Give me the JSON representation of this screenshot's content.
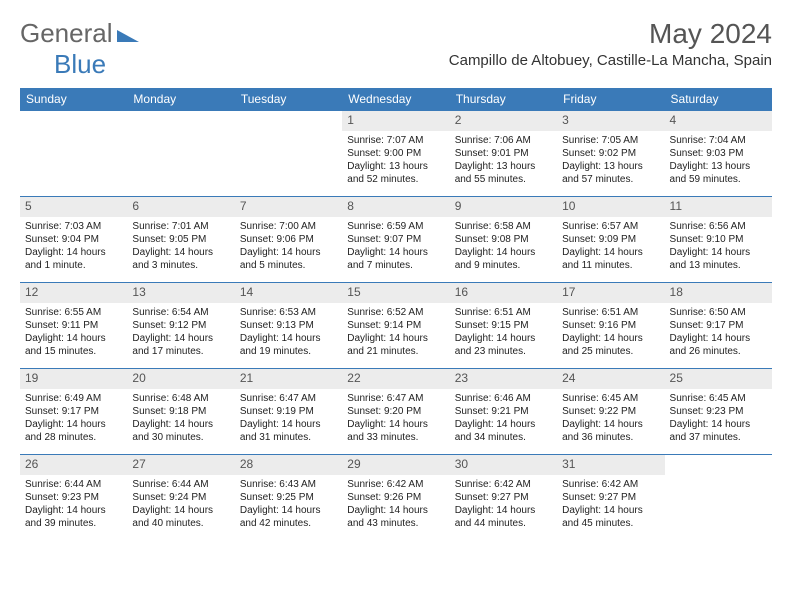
{
  "logo": {
    "part1": "General",
    "part2": "Blue"
  },
  "title": "May 2024",
  "location": "Campillo de Altobuey, Castille-La Mancha, Spain",
  "colors": {
    "header_bg": "#3a7ab8",
    "header_fg": "#ffffff",
    "daynum_bg": "#ececec",
    "border": "#3a7ab8"
  },
  "weekdays": [
    "Sunday",
    "Monday",
    "Tuesday",
    "Wednesday",
    "Thursday",
    "Friday",
    "Saturday"
  ],
  "weeks": [
    [
      {
        "n": "",
        "sr": "",
        "ss": "",
        "dl": ""
      },
      {
        "n": "",
        "sr": "",
        "ss": "",
        "dl": ""
      },
      {
        "n": "",
        "sr": "",
        "ss": "",
        "dl": ""
      },
      {
        "n": "1",
        "sr": "Sunrise: 7:07 AM",
        "ss": "Sunset: 9:00 PM",
        "dl": "Daylight: 13 hours and 52 minutes."
      },
      {
        "n": "2",
        "sr": "Sunrise: 7:06 AM",
        "ss": "Sunset: 9:01 PM",
        "dl": "Daylight: 13 hours and 55 minutes."
      },
      {
        "n": "3",
        "sr": "Sunrise: 7:05 AM",
        "ss": "Sunset: 9:02 PM",
        "dl": "Daylight: 13 hours and 57 minutes."
      },
      {
        "n": "4",
        "sr": "Sunrise: 7:04 AM",
        "ss": "Sunset: 9:03 PM",
        "dl": "Daylight: 13 hours and 59 minutes."
      }
    ],
    [
      {
        "n": "5",
        "sr": "Sunrise: 7:03 AM",
        "ss": "Sunset: 9:04 PM",
        "dl": "Daylight: 14 hours and 1 minute."
      },
      {
        "n": "6",
        "sr": "Sunrise: 7:01 AM",
        "ss": "Sunset: 9:05 PM",
        "dl": "Daylight: 14 hours and 3 minutes."
      },
      {
        "n": "7",
        "sr": "Sunrise: 7:00 AM",
        "ss": "Sunset: 9:06 PM",
        "dl": "Daylight: 14 hours and 5 minutes."
      },
      {
        "n": "8",
        "sr": "Sunrise: 6:59 AM",
        "ss": "Sunset: 9:07 PM",
        "dl": "Daylight: 14 hours and 7 minutes."
      },
      {
        "n": "9",
        "sr": "Sunrise: 6:58 AM",
        "ss": "Sunset: 9:08 PM",
        "dl": "Daylight: 14 hours and 9 minutes."
      },
      {
        "n": "10",
        "sr": "Sunrise: 6:57 AM",
        "ss": "Sunset: 9:09 PM",
        "dl": "Daylight: 14 hours and 11 minutes."
      },
      {
        "n": "11",
        "sr": "Sunrise: 6:56 AM",
        "ss": "Sunset: 9:10 PM",
        "dl": "Daylight: 14 hours and 13 minutes."
      }
    ],
    [
      {
        "n": "12",
        "sr": "Sunrise: 6:55 AM",
        "ss": "Sunset: 9:11 PM",
        "dl": "Daylight: 14 hours and 15 minutes."
      },
      {
        "n": "13",
        "sr": "Sunrise: 6:54 AM",
        "ss": "Sunset: 9:12 PM",
        "dl": "Daylight: 14 hours and 17 minutes."
      },
      {
        "n": "14",
        "sr": "Sunrise: 6:53 AM",
        "ss": "Sunset: 9:13 PM",
        "dl": "Daylight: 14 hours and 19 minutes."
      },
      {
        "n": "15",
        "sr": "Sunrise: 6:52 AM",
        "ss": "Sunset: 9:14 PM",
        "dl": "Daylight: 14 hours and 21 minutes."
      },
      {
        "n": "16",
        "sr": "Sunrise: 6:51 AM",
        "ss": "Sunset: 9:15 PM",
        "dl": "Daylight: 14 hours and 23 minutes."
      },
      {
        "n": "17",
        "sr": "Sunrise: 6:51 AM",
        "ss": "Sunset: 9:16 PM",
        "dl": "Daylight: 14 hours and 25 minutes."
      },
      {
        "n": "18",
        "sr": "Sunrise: 6:50 AM",
        "ss": "Sunset: 9:17 PM",
        "dl": "Daylight: 14 hours and 26 minutes."
      }
    ],
    [
      {
        "n": "19",
        "sr": "Sunrise: 6:49 AM",
        "ss": "Sunset: 9:17 PM",
        "dl": "Daylight: 14 hours and 28 minutes."
      },
      {
        "n": "20",
        "sr": "Sunrise: 6:48 AM",
        "ss": "Sunset: 9:18 PM",
        "dl": "Daylight: 14 hours and 30 minutes."
      },
      {
        "n": "21",
        "sr": "Sunrise: 6:47 AM",
        "ss": "Sunset: 9:19 PM",
        "dl": "Daylight: 14 hours and 31 minutes."
      },
      {
        "n": "22",
        "sr": "Sunrise: 6:47 AM",
        "ss": "Sunset: 9:20 PM",
        "dl": "Daylight: 14 hours and 33 minutes."
      },
      {
        "n": "23",
        "sr": "Sunrise: 6:46 AM",
        "ss": "Sunset: 9:21 PM",
        "dl": "Daylight: 14 hours and 34 minutes."
      },
      {
        "n": "24",
        "sr": "Sunrise: 6:45 AM",
        "ss": "Sunset: 9:22 PM",
        "dl": "Daylight: 14 hours and 36 minutes."
      },
      {
        "n": "25",
        "sr": "Sunrise: 6:45 AM",
        "ss": "Sunset: 9:23 PM",
        "dl": "Daylight: 14 hours and 37 minutes."
      }
    ],
    [
      {
        "n": "26",
        "sr": "Sunrise: 6:44 AM",
        "ss": "Sunset: 9:23 PM",
        "dl": "Daylight: 14 hours and 39 minutes."
      },
      {
        "n": "27",
        "sr": "Sunrise: 6:44 AM",
        "ss": "Sunset: 9:24 PM",
        "dl": "Daylight: 14 hours and 40 minutes."
      },
      {
        "n": "28",
        "sr": "Sunrise: 6:43 AM",
        "ss": "Sunset: 9:25 PM",
        "dl": "Daylight: 14 hours and 42 minutes."
      },
      {
        "n": "29",
        "sr": "Sunrise: 6:42 AM",
        "ss": "Sunset: 9:26 PM",
        "dl": "Daylight: 14 hours and 43 minutes."
      },
      {
        "n": "30",
        "sr": "Sunrise: 6:42 AM",
        "ss": "Sunset: 9:27 PM",
        "dl": "Daylight: 14 hours and 44 minutes."
      },
      {
        "n": "31",
        "sr": "Sunrise: 6:42 AM",
        "ss": "Sunset: 9:27 PM",
        "dl": "Daylight: 14 hours and 45 minutes."
      },
      {
        "n": "",
        "sr": "",
        "ss": "",
        "dl": ""
      }
    ]
  ]
}
